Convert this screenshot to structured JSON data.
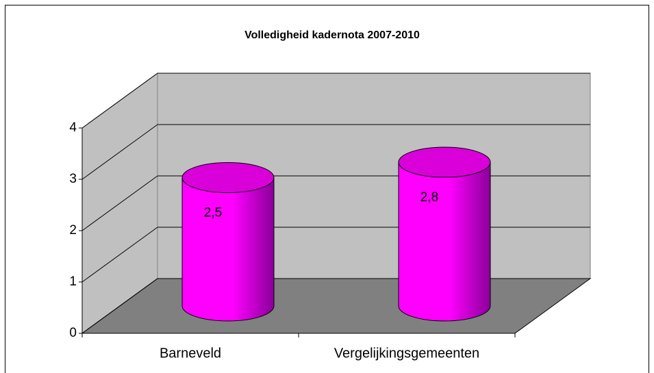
{
  "chart_data": {
    "type": "bar",
    "title": "Volledigheid kadernota 2007-2010",
    "categories": [
      "Barneveld",
      "Vergelijkingsgemeenten"
    ],
    "values": [
      2.5,
      2.8
    ],
    "value_labels": [
      "2,5",
      "2,8"
    ],
    "color": "#ff00ff",
    "ylim": [
      0,
      4
    ],
    "yticks": [
      0,
      1,
      2,
      3,
      4
    ],
    "grid": true
  }
}
